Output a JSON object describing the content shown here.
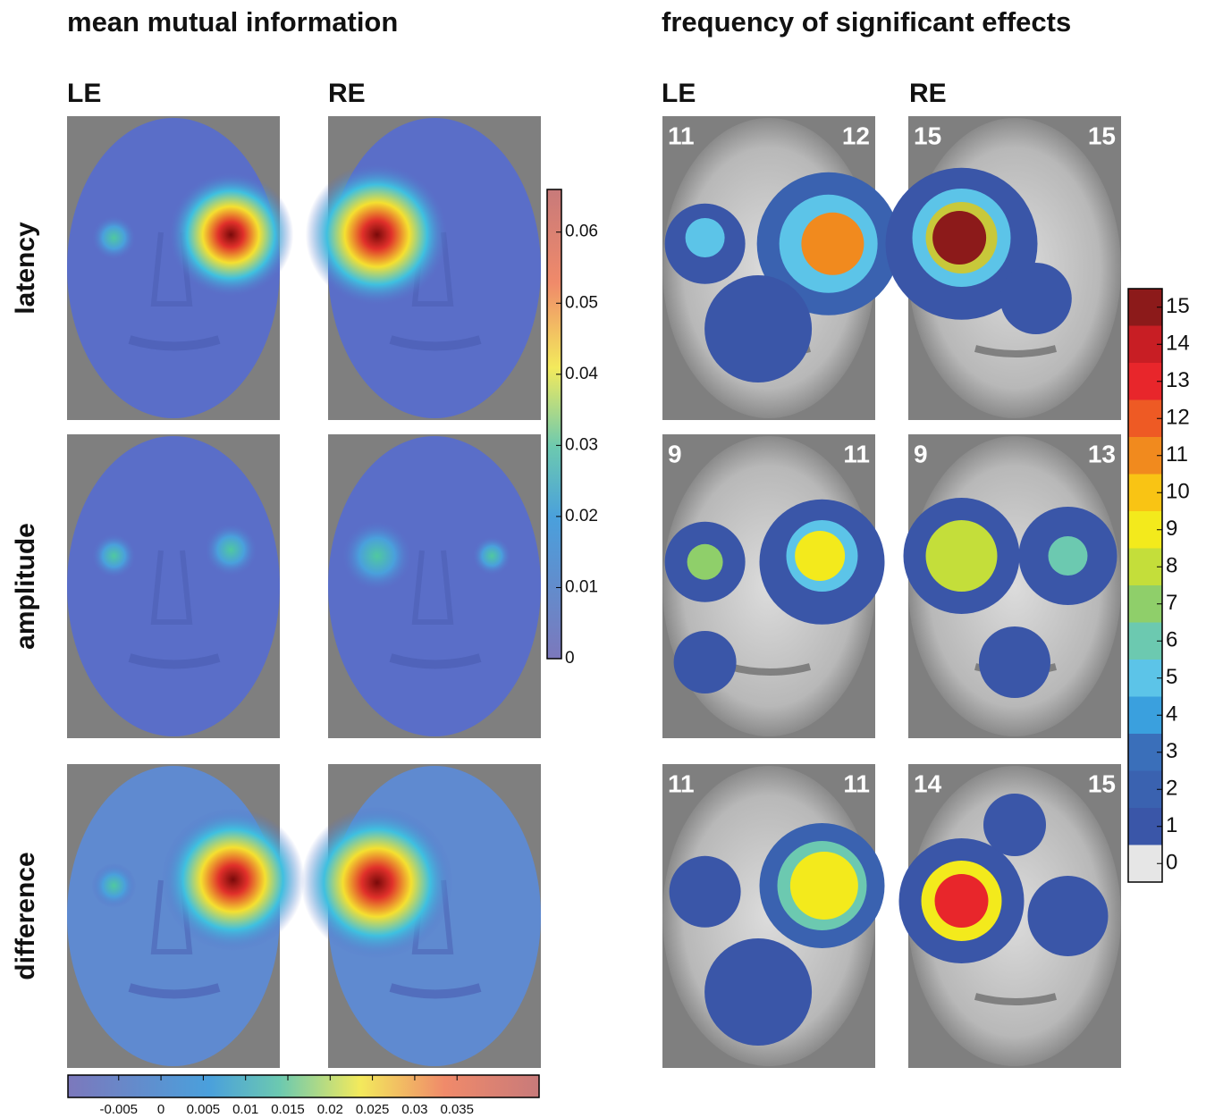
{
  "left_panel": {
    "title": "mean mutual information",
    "columns": [
      "LE",
      "RE"
    ],
    "rows": [
      "latency",
      "amplitude",
      "difference"
    ],
    "colorbar_vertical": {
      "lim": [
        0,
        0.066
      ],
      "ticks": [
        0,
        0.01,
        0.02,
        0.03,
        0.04,
        0.05,
        0.06
      ]
    },
    "colorbar_horizontal": {
      "lim": [
        -0.011,
        0.0447
      ],
      "ticks": [
        -0.005,
        0,
        0.005,
        0.01,
        0.015,
        0.02,
        0.025,
        0.03,
        0.035
      ]
    }
  },
  "right_panel": {
    "title": "frequency of significant effects",
    "columns": [
      "LE",
      "RE"
    ],
    "counts": [
      [
        [
          11,
          12
        ],
        [
          15,
          15
        ]
      ],
      [
        [
          9,
          11
        ],
        [
          9,
          13
        ]
      ],
      [
        [
          11,
          11
        ],
        [
          14,
          15
        ]
      ]
    ],
    "colorbar": {
      "lim": [
        -0.5,
        15.5
      ],
      "ticks": [
        0,
        1,
        2,
        3,
        4,
        5,
        6,
        7,
        8,
        9,
        10,
        11,
        12,
        13,
        14,
        15
      ]
    }
  }
}
